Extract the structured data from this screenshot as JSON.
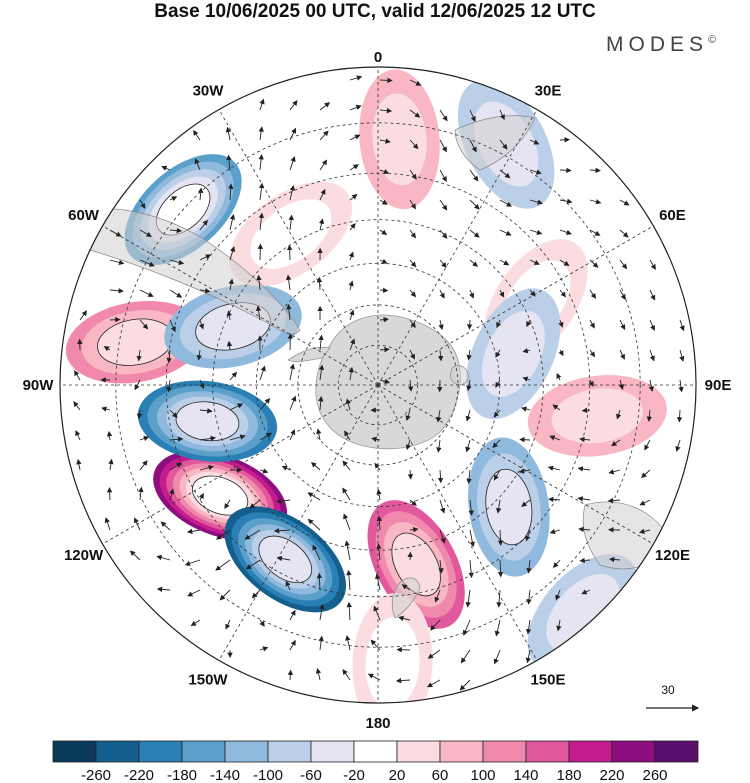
{
  "title": "Base 10/06/2025 00 UTC, valid 12/06/2025 12 UTC",
  "brand": "MODES",
  "brand_mark": "©",
  "map": {
    "projection": "south-polar-stereographic",
    "longitude_labels": [
      {
        "text": "0",
        "lon": 0
      },
      {
        "text": "30E",
        "lon": 30
      },
      {
        "text": "60E",
        "lon": 60
      },
      {
        "text": "90E",
        "lon": 90
      },
      {
        "text": "120E",
        "lon": 120
      },
      {
        "text": "150E",
        "lon": 150
      },
      {
        "text": "180",
        "lon": 180
      },
      {
        "text": "150W",
        "lon": -150
      },
      {
        "text": "120W",
        "lon": -120
      },
      {
        "text": "90W",
        "lon": -90
      },
      {
        "text": "60W",
        "lon": -60
      },
      {
        "text": "30W",
        "lon": -30
      }
    ],
    "latitude_circles": [
      -80,
      -70,
      -60,
      -50,
      -40,
      -30,
      -20
    ],
    "anomaly_centers": [
      {
        "lon": -55,
        "lat": -44,
        "value": 250
      },
      {
        "lon": -28,
        "lat": -43,
        "value": -230
      },
      {
        "lon": -78,
        "lat": -48,
        "value": -200
      },
      {
        "lon": 12,
        "lat": -46,
        "value": 160
      },
      {
        "lon": -132,
        "lat": -30,
        "value": -170
      },
      {
        "lon": -100,
        "lat": -33,
        "value": 120
      },
      {
        "lon": -112,
        "lat": -52,
        "value": -110
      },
      {
        "lon": 47,
        "lat": -47,
        "value": -110
      },
      {
        "lon": 82,
        "lat": -38,
        "value": 70
      },
      {
        "lon": 152,
        "lat": -28,
        "value": -80
      },
      {
        "lon": 175,
        "lat": -33,
        "value": 70
      },
      {
        "lon": 3,
        "lat": -27,
        "value": 60
      },
      {
        "lon": 42,
        "lat": -22,
        "value": -70
      },
      {
        "lon": 118,
        "lat": -47,
        "value": 60
      },
      {
        "lon": 103,
        "lat": -56,
        "value": -80
      },
      {
        "lon": -150,
        "lat": -48,
        "value": 50
      }
    ]
  },
  "reference_vector": {
    "label": "30"
  },
  "colorbar": {
    "colors": [
      "#0b3a5c",
      "#155f8e",
      "#2a7fb5",
      "#5b9fcb",
      "#8fb9dd",
      "#bccfe8",
      "#e4e4f2",
      "#ffffff",
      "#fbdde1",
      "#f8b7c3",
      "#f089ab",
      "#e2589c",
      "#c41c8e",
      "#8e0e80",
      "#5a0f6e"
    ],
    "labels": [
      "-260",
      "-220",
      "-180",
      "-140",
      "-100",
      "-60",
      "-20",
      "20",
      "60",
      "100",
      "140",
      "180",
      "220",
      "260"
    ]
  }
}
